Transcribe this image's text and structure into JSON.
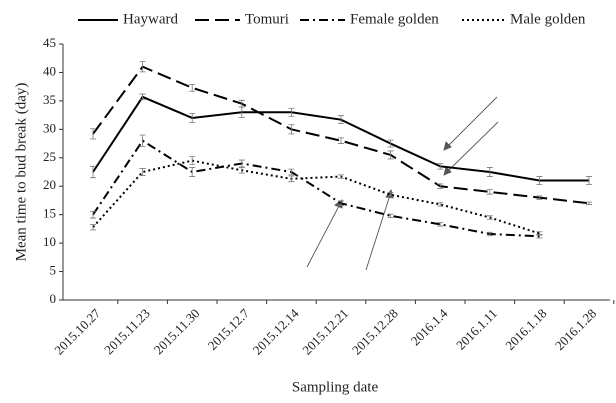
{
  "chart_data": {
    "type": "line",
    "x_label": "Sampling date",
    "y_label": "Mean time to bud break (day)",
    "categories": [
      "2015.10.27",
      "2015.11.23",
      "2015.11.30",
      "2015.12.7",
      "2015.12.14",
      "2015.12.21",
      "2015.12.28",
      "2016.1.4",
      "2016.1.11",
      "2016.1.18",
      "2016.1.28"
    ],
    "series": [
      {
        "name": "Hayward",
        "color": "#000000",
        "dash": "solid",
        "values": [
          22.5,
          35.7,
          32,
          33,
          33,
          31.7,
          27.5,
          23.5,
          22.5,
          21,
          21
        ],
        "errors": [
          1,
          0.5,
          0.8,
          0.9,
          0.7,
          0.7,
          0.6,
          0.5,
          0.8,
          0.7,
          0.7
        ]
      },
      {
        "name": "Tomuri",
        "color": "#000000",
        "dash": "dashed",
        "values": [
          29.2,
          41,
          37.3,
          34.5,
          30,
          28,
          25.5,
          20,
          19,
          18,
          17
        ],
        "errors": [
          0.9,
          0.9,
          0.6,
          0.6,
          0.8,
          0.5,
          0.7,
          0.4,
          0.4,
          0.3,
          0.2
        ]
      },
      {
        "name": "Female golden",
        "color": "#000000",
        "dash": "dashdot",
        "values": [
          15,
          28,
          22.5,
          24,
          22.5,
          17,
          14.8,
          13.3,
          11.6,
          11.2,
          null
        ],
        "errors": [
          0.6,
          1,
          0.8,
          0.6,
          0.5,
          0.4,
          0.3,
          0.3,
          0.3,
          0.3,
          null
        ]
      },
      {
        "name": "Male golden",
        "color": "#000000",
        "dash": "dotted",
        "values": [
          12.8,
          22.5,
          24.5,
          22.8,
          21.3,
          21.7,
          18.5,
          16.8,
          14.5,
          11.7,
          null
        ],
        "errors": [
          0.5,
          0.6,
          0.7,
          0.5,
          0.5,
          0.3,
          0.4,
          0.3,
          0.3,
          0.3,
          null
        ]
      }
    ],
    "ylim": [
      0,
      45
    ],
    "yticks": [
      0,
      5,
      10,
      15,
      20,
      25,
      30,
      35,
      40,
      45
    ],
    "legend": "top",
    "grid": false
  }
}
